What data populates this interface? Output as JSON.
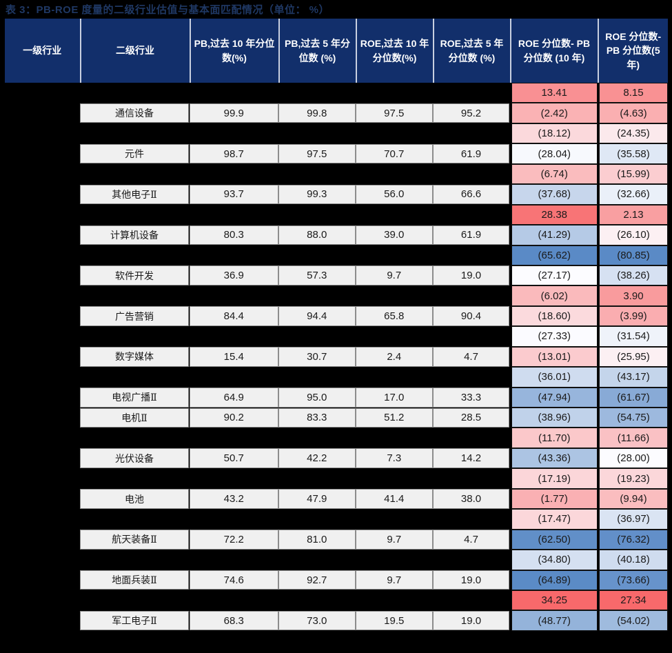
{
  "title": "表 3：PB-ROE 度量的二级行业估值与基本面匹配情况（单位： %）",
  "colors": {
    "page_background": "#000000",
    "title_text": "#1F3864",
    "header_background": "#122F6B",
    "header_text": "#FFFFFF",
    "header_divider": "#C9D0E0",
    "cell_background": "#F0F0F0",
    "cell_border": "#8C8C8C",
    "cell_text": "#1A1A1A",
    "heat_scale_red": "#F8696B",
    "heat_scale_white": "#FCFCFF",
    "heat_scale_blue": "#5A8AC6"
  },
  "table": {
    "columns": [
      "一级行业",
      "二级行业",
      "PB,过去 10 年分位数(%)",
      "PB,过去 5 年分位数 (%)",
      "ROE,过去 10 年分位数(%)",
      "ROE,过去 5 年分位数 (%)",
      "ROE 分位数- PB 分位数 (10 年)",
      "ROE 分位数-PB 分位数(5 年)"
    ],
    "industry_rows": [
      {
        "grid_row": 1,
        "name": "通信设备",
        "pb10": "99.9",
        "pb5": "99.8",
        "roe10": "97.5",
        "roe5": "95.2"
      },
      {
        "grid_row": 3,
        "name": "元件",
        "pb10": "98.7",
        "pb5": "97.5",
        "roe10": "70.7",
        "roe5": "61.9"
      },
      {
        "grid_row": 5,
        "name": "其他电子Ⅱ",
        "pb10": "93.7",
        "pb5": "99.3",
        "roe10": "56.0",
        "roe5": "66.6"
      },
      {
        "grid_row": 7,
        "name": "计算机设备",
        "pb10": "80.3",
        "pb5": "88.0",
        "roe10": "39.0",
        "roe5": "61.9"
      },
      {
        "grid_row": 9,
        "name": "软件开发",
        "pb10": "36.9",
        "pb5": "57.3",
        "roe10": "9.7",
        "roe5": "19.0"
      },
      {
        "grid_row": 11,
        "name": "广告营销",
        "pb10": "84.4",
        "pb5": "94.4",
        "roe10": "65.8",
        "roe5": "90.4"
      },
      {
        "grid_row": 13,
        "name": "数字媒体",
        "pb10": "15.4",
        "pb5": "30.7",
        "roe10": "2.4",
        "roe5": "4.7"
      },
      {
        "grid_row": 15,
        "name": "电视广播Ⅱ",
        "pb10": "64.9",
        "pb5": "95.0",
        "roe10": "17.0",
        "roe5": "33.3"
      },
      {
        "grid_row": 16,
        "name": "电机Ⅱ",
        "pb10": "90.2",
        "pb5": "83.3",
        "roe10": "51.2",
        "roe5": "28.5"
      },
      {
        "grid_row": 18,
        "name": "光伏设备",
        "pb10": "50.7",
        "pb5": "42.2",
        "roe10": "7.3",
        "roe5": "14.2"
      },
      {
        "grid_row": 20,
        "name": "电池",
        "pb10": "43.2",
        "pb5": "47.9",
        "roe10": "41.4",
        "roe5": "38.0"
      },
      {
        "grid_row": 22,
        "name": "航天装备Ⅱ",
        "pb10": "72.2",
        "pb5": "81.0",
        "roe10": "9.7",
        "roe5": "4.7"
      },
      {
        "grid_row": 24,
        "name": "地面兵装Ⅱ",
        "pb10": "74.6",
        "pb5": "92.7",
        "roe10": "9.7",
        "roe5": "19.0"
      },
      {
        "grid_row": 26,
        "name": "军工电子Ⅱ",
        "pb10": "68.3",
        "pb5": "73.0",
        "roe10": "19.5",
        "roe5": "19.0"
      }
    ],
    "diff_rows": [
      {
        "d10": "13.41",
        "d5": "8.15"
      },
      {
        "d10": "(2.42)",
        "d5": "(4.63)"
      },
      {
        "d10": "(18.12)",
        "d5": "(24.35)"
      },
      {
        "d10": "(28.04)",
        "d5": "(35.58)"
      },
      {
        "d10": "(6.74)",
        "d5": "(15.99)"
      },
      {
        "d10": "(37.68)",
        "d5": "(32.66)"
      },
      {
        "d10": "28.38",
        "d5": "2.13"
      },
      {
        "d10": "(41.29)",
        "d5": "(26.10)"
      },
      {
        "d10": "(65.62)",
        "d5": "(80.85)"
      },
      {
        "d10": "(27.17)",
        "d5": "(38.26)"
      },
      {
        "d10": "(6.02)",
        "d5": "3.90"
      },
      {
        "d10": "(18.60)",
        "d5": "(3.99)"
      },
      {
        "d10": "(27.33)",
        "d5": "(31.54)"
      },
      {
        "d10": "(13.01)",
        "d5": "(25.95)"
      },
      {
        "d10": "(36.01)",
        "d5": "(43.17)"
      },
      {
        "d10": "(47.94)",
        "d5": "(61.67)"
      },
      {
        "d10": "(38.96)",
        "d5": "(54.75)"
      },
      {
        "d10": "(11.70)",
        "d5": "(11.66)"
      },
      {
        "d10": "(43.36)",
        "d5": "(28.00)"
      },
      {
        "d10": "(17.19)",
        "d5": "(19.23)"
      },
      {
        "d10": "(1.77)",
        "d5": "(9.94)"
      },
      {
        "d10": "(17.47)",
        "d5": "(36.97)"
      },
      {
        "d10": "(62.50)",
        "d5": "(76.32)"
      },
      {
        "d10": "(34.80)",
        "d5": "(40.18)"
      },
      {
        "d10": "(64.89)",
        "d5": "(73.66)"
      },
      {
        "d10": "34.25",
        "d5": "27.34"
      },
      {
        "d10": "(48.77)",
        "d5": "(54.02)"
      }
    ]
  }
}
